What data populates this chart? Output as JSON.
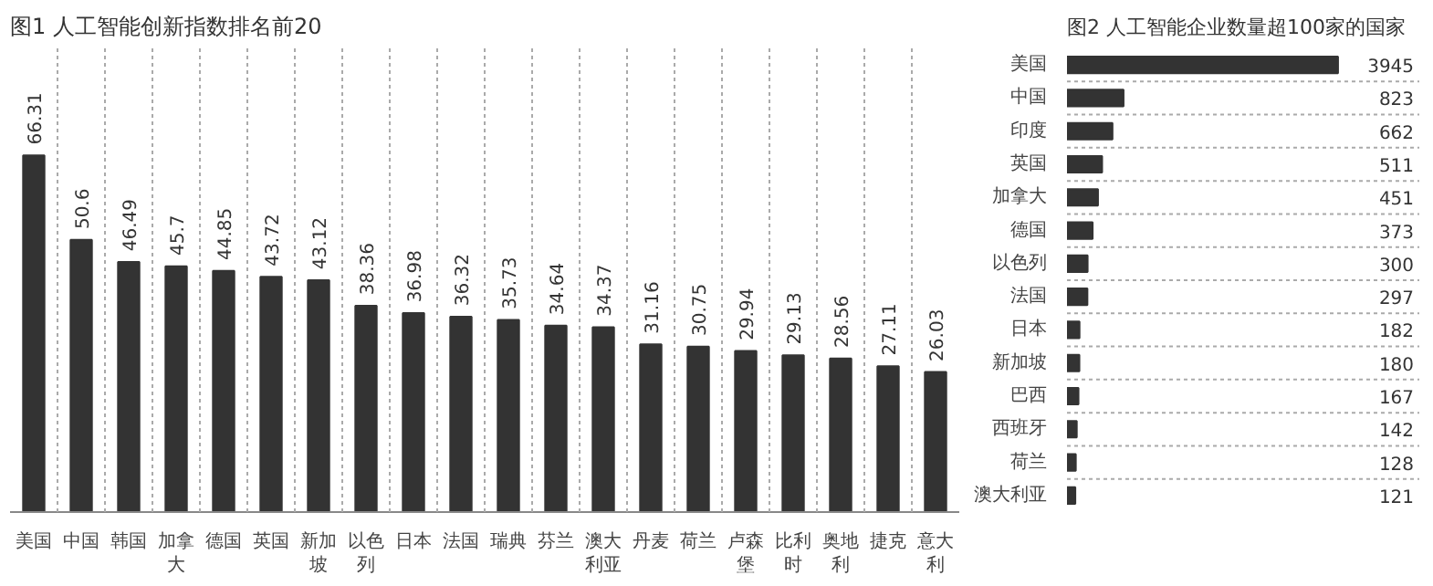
{
  "chart_data": [
    {
      "type": "bar",
      "title": "图1  人工智能创新指数排名前20",
      "categories": [
        "美国",
        "中国",
        "韩国",
        "加拿大",
        "德国",
        "英国",
        "新加坡",
        "以色列",
        "日本",
        "法国",
        "瑞典",
        "芬兰",
        "澳大利亚",
        "丹麦",
        "荷兰",
        "卢森堡",
        "比利时",
        "奥地利",
        "捷克",
        "意大利"
      ],
      "values": [
        66.31,
        50.6,
        46.49,
        45.7,
        44.85,
        43.72,
        43.12,
        38.36,
        36.98,
        36.32,
        35.73,
        34.64,
        34.37,
        31.16,
        30.75,
        29.94,
        29.13,
        28.56,
        27.11,
        26.03
      ],
      "color": "#333333",
      "data_labels": true,
      "grid": "x"
    },
    {
      "type": "bar",
      "orientation": "horizontal",
      "title": "图2 人工智能企业数量超100家的国家",
      "categories": [
        "美国",
        "中国",
        "印度",
        "英国",
        "加拿大",
        "德国",
        "以色列",
        "法国",
        "日本",
        "新加坡",
        "巴西",
        "西班牙",
        "荷兰",
        "澳大利亚"
      ],
      "values": [
        3945,
        823,
        662,
        511,
        451,
        373,
        300,
        297,
        182,
        180,
        167,
        142,
        128,
        121
      ],
      "color": "#333333",
      "data_labels": true,
      "grid": "y"
    }
  ]
}
